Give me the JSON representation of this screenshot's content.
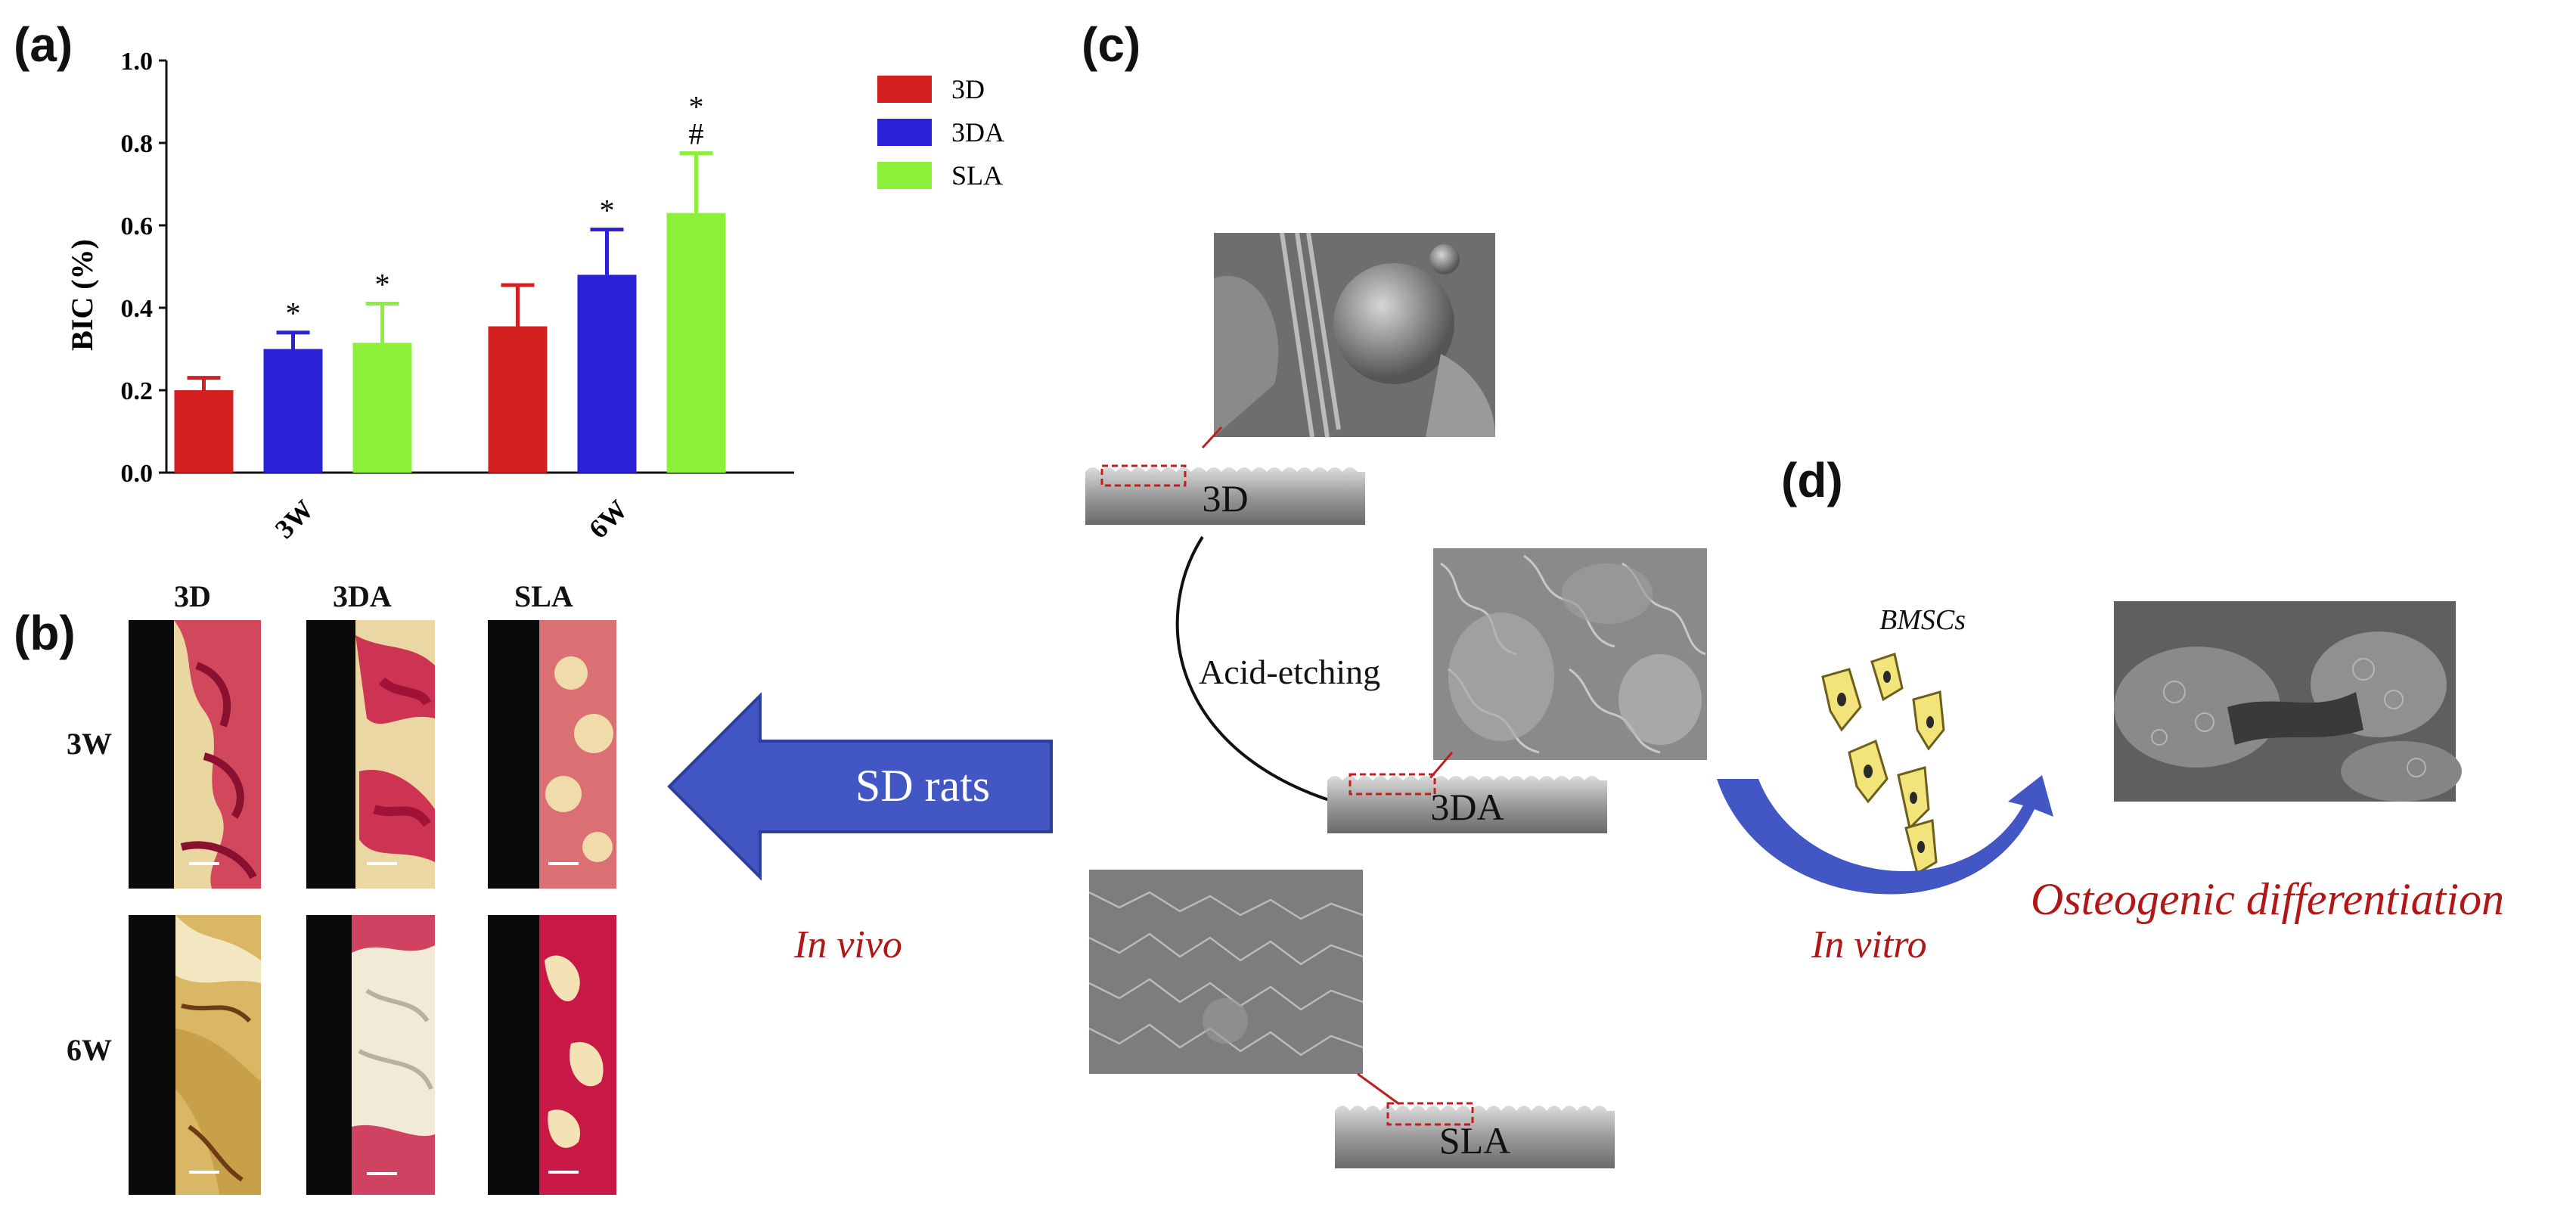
{
  "panels": {
    "a": "(a)",
    "b": "(b)",
    "c": "(c)",
    "d": "(d)"
  },
  "chart_data": {
    "type": "bar",
    "ylabel": "BIC (%)",
    "ylim": [
      0.0,
      1.0
    ],
    "yticks": [
      "0.0",
      "0.2",
      "0.4",
      "0.6",
      "0.8",
      "1.0"
    ],
    "categories": [
      "3W",
      "6W"
    ],
    "series": [
      {
        "name": "3D",
        "color": "#d42020",
        "values": [
          0.2,
          0.355
        ],
        "errors": [
          0.03,
          0.1
        ],
        "marks": [
          "",
          ""
        ]
      },
      {
        "name": "3DA",
        "color": "#2a21d8",
        "values": [
          0.3,
          0.48
        ],
        "errors": [
          0.04,
          0.11
        ],
        "marks": [
          "*",
          "*"
        ]
      },
      {
        "name": "SLA",
        "color": "#8cf03a",
        "values": [
          0.315,
          0.63
        ],
        "errors": [
          0.095,
          0.145
        ],
        "marks": [
          "*",
          "*\n#"
        ]
      }
    ],
    "legend_position": "top-right"
  },
  "histology": {
    "columns": [
      "3D",
      "3DA",
      "SLA"
    ],
    "rows": [
      "3W",
      "6W"
    ]
  },
  "arrow_label": "SD rats",
  "in_vivo": "In vivo",
  "in_vitro": "In vitro",
  "surfaces": {
    "top": "3D",
    "middle": "3DA",
    "bottom": "SLA"
  },
  "process_label": "Acid-etching",
  "cells_label": "BMSCs",
  "outcome_label": "Osteogenic differentiation",
  "colors": {
    "accent_red": "#b01818",
    "arrow_blue": "#4257c4",
    "tissue_red": "#c81845",
    "bone_yellow": "#e9d6a0",
    "cell_yellow": "#f2e37a"
  }
}
